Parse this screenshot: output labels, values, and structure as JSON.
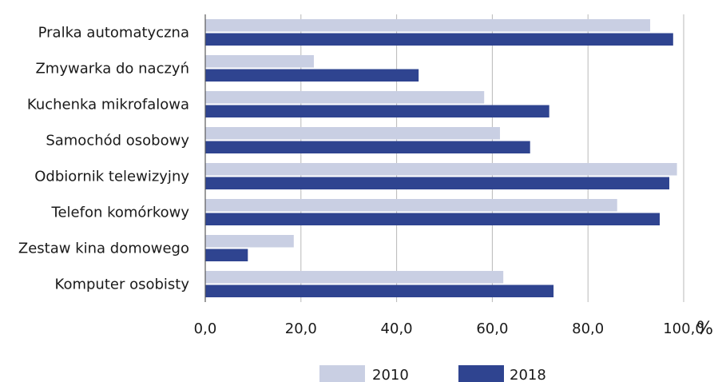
{
  "chart_data": {
    "type": "bar",
    "orientation": "horizontal",
    "categories": [
      "Pralka automatyczna",
      "Zmywarka do naczyń",
      "Kuchenka mikrofalowa",
      "Samochód osobowy",
      "Odbiornik telewizyjny",
      "Telefon komórkowy",
      "Zestaw kina domowego",
      "Komputer osobisty"
    ],
    "series": [
      {
        "name": "2010",
        "color": "#c9cfe3",
        "values": [
          93.0,
          22.7,
          58.3,
          61.6,
          98.6,
          86.1,
          18.5,
          62.3
        ]
      },
      {
        "name": "2018",
        "color": "#2f4490",
        "values": [
          97.8,
          44.6,
          71.9,
          67.9,
          97.0,
          95.0,
          8.9,
          72.8
        ]
      }
    ],
    "x_ticks": [
      "0,0",
      "20,0",
      "40,0",
      "60,0",
      "80,0",
      "100,0"
    ],
    "x_tick_values": [
      0,
      20,
      40,
      60,
      80,
      100
    ],
    "xlim": [
      0,
      100
    ],
    "x_unit": "%",
    "grid": "vertical",
    "legend": "bottom"
  }
}
